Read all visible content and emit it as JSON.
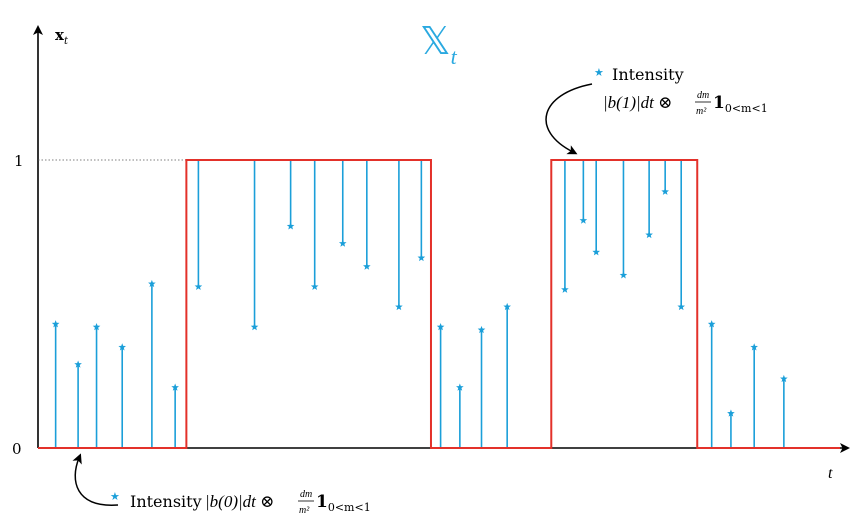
{
  "title": "𝕏",
  "title_sub": "t",
  "axes": {
    "y_label": "x",
    "y_label_sub": "t",
    "x_label": "t",
    "y_ticks": [
      {
        "value": 0,
        "label": "0"
      },
      {
        "value": 1,
        "label": "1"
      }
    ]
  },
  "process": {
    "color": "#e3312a",
    "segments": [
      {
        "from": 0.0,
        "to": 0.185,
        "level": 0
      },
      {
        "from": 0.185,
        "to": 0.49,
        "level": 1
      },
      {
        "from": 0.49,
        "to": 0.64,
        "level": 0
      },
      {
        "from": 0.64,
        "to": 0.822,
        "level": 1
      },
      {
        "from": 0.822,
        "to": 1.0,
        "level": 0
      }
    ]
  },
  "jumps": {
    "color": "#1b9fd9",
    "points": [
      {
        "t": 0.022,
        "m": 0.43,
        "base": 0
      },
      {
        "t": 0.05,
        "m": 0.29,
        "base": 0
      },
      {
        "t": 0.073,
        "m": 0.42,
        "base": 0
      },
      {
        "t": 0.105,
        "m": 0.35,
        "base": 0
      },
      {
        "t": 0.142,
        "m": 0.57,
        "base": 0
      },
      {
        "t": 0.171,
        "m": 0.21,
        "base": 0
      },
      {
        "t": 0.2,
        "m": 0.56,
        "base": 1
      },
      {
        "t": 0.27,
        "m": 0.42,
        "base": 1
      },
      {
        "t": 0.315,
        "m": 0.77,
        "base": 1
      },
      {
        "t": 0.345,
        "m": 0.56,
        "base": 1
      },
      {
        "t": 0.38,
        "m": 0.71,
        "base": 1
      },
      {
        "t": 0.41,
        "m": 0.63,
        "base": 1
      },
      {
        "t": 0.45,
        "m": 0.49,
        "base": 1
      },
      {
        "t": 0.478,
        "m": 0.66,
        "base": 1
      },
      {
        "t": 0.502,
        "m": 0.42,
        "base": 0
      },
      {
        "t": 0.526,
        "m": 0.21,
        "base": 0
      },
      {
        "t": 0.553,
        "m": 0.41,
        "base": 0
      },
      {
        "t": 0.585,
        "m": 0.49,
        "base": 0
      },
      {
        "t": 0.657,
        "m": 0.55,
        "base": 1
      },
      {
        "t": 0.68,
        "m": 0.79,
        "base": 1
      },
      {
        "t": 0.696,
        "m": 0.68,
        "base": 1
      },
      {
        "t": 0.73,
        "m": 0.6,
        "base": 1
      },
      {
        "t": 0.762,
        "m": 0.74,
        "base": 1
      },
      {
        "t": 0.782,
        "m": 0.89,
        "base": 1
      },
      {
        "t": 0.802,
        "m": 0.49,
        "base": 1
      },
      {
        "t": 0.84,
        "m": 0.43,
        "base": 0
      },
      {
        "t": 0.864,
        "m": 0.12,
        "base": 0
      },
      {
        "t": 0.893,
        "m": 0.35,
        "base": 0
      },
      {
        "t": 0.93,
        "m": 0.24,
        "base": 0
      }
    ]
  },
  "annotations": {
    "top": {
      "marker": "★",
      "line1": "Intensity",
      "formula": "|b(1)|dt ⊗",
      "frac_num": "dm",
      "frac_den": "m²",
      "indicator": "1",
      "indicator_sub": "0<m<1"
    },
    "bottom": {
      "marker": "★",
      "text": "Intensity",
      "formula": "|b(0)|dt ⊗",
      "frac_num": "dm",
      "frac_den": "m²",
      "indicator": "1",
      "indicator_sub": "0<m<1"
    }
  }
}
